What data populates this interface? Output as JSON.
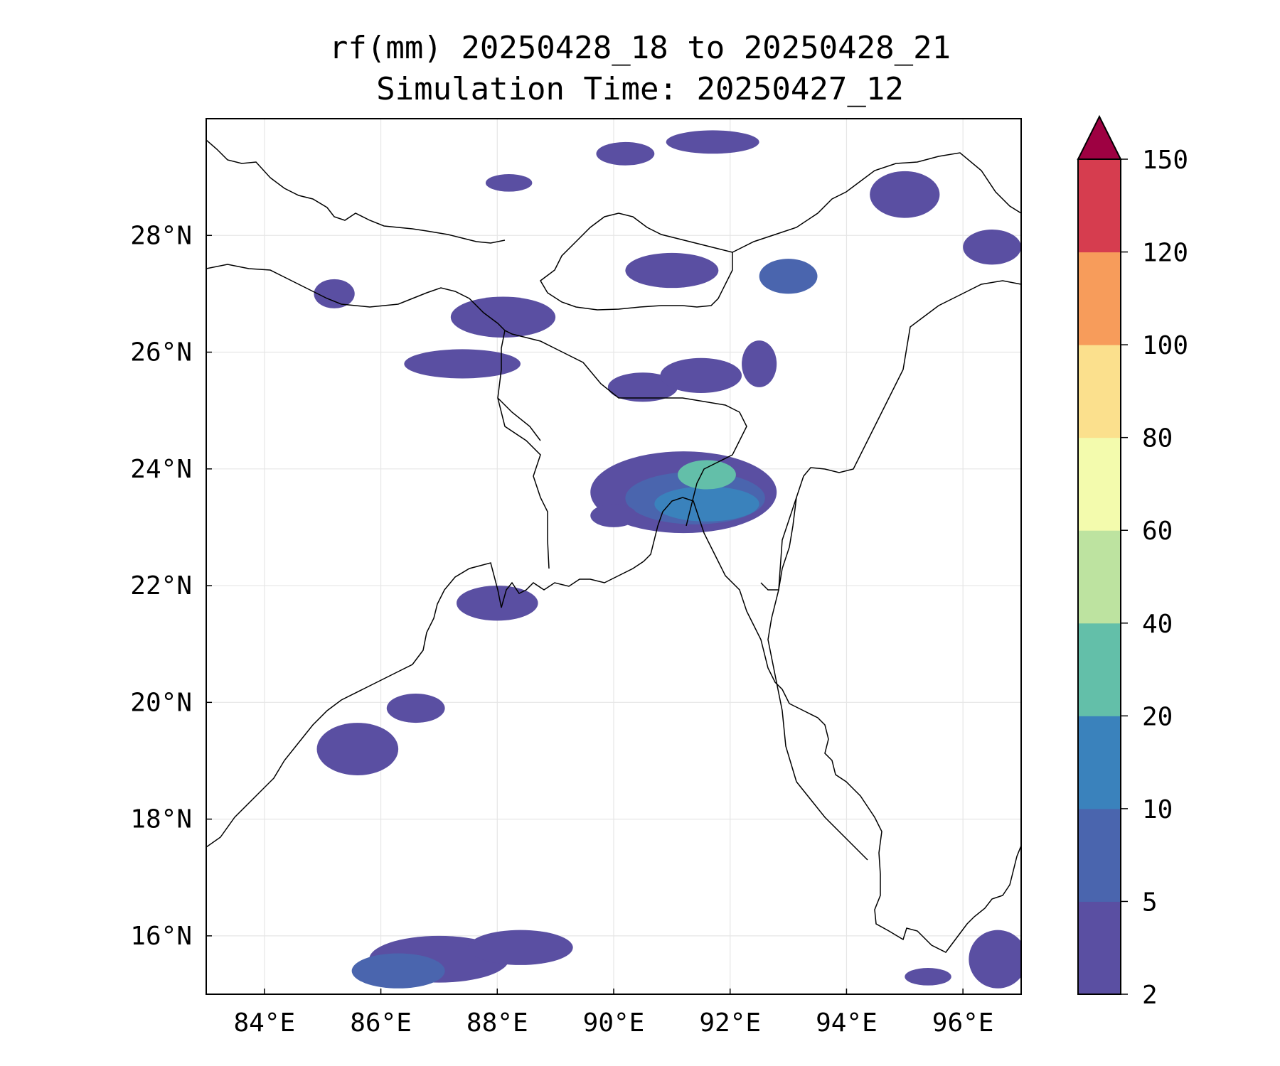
{
  "title": {
    "line1": "rf(mm) 20250428_18 to 20250428_21",
    "line2": "Simulation Time: 20250427_12"
  },
  "map": {
    "lon_range": [
      83.0,
      97.0
    ],
    "lat_range": [
      15.0,
      30.0
    ],
    "x_ticks": [
      {
        "value": 84,
        "label": "84°E"
      },
      {
        "value": 86,
        "label": "86°E"
      },
      {
        "value": 88,
        "label": "88°E"
      },
      {
        "value": 90,
        "label": "90°E"
      },
      {
        "value": 92,
        "label": "92°E"
      },
      {
        "value": 94,
        "label": "94°E"
      },
      {
        "value": 96,
        "label": "96°E"
      }
    ],
    "y_ticks": [
      {
        "value": 16,
        "label": "16°N"
      },
      {
        "value": 18,
        "label": "18°N"
      },
      {
        "value": 20,
        "label": "20°N"
      },
      {
        "value": 22,
        "label": "22°N"
      },
      {
        "value": 24,
        "label": "24°N"
      },
      {
        "value": 26,
        "label": "26°N"
      },
      {
        "value": 28,
        "label": "28°N"
      }
    ],
    "grid": true
  },
  "colorbar": {
    "levels": [
      {
        "label": "2",
        "color": "#5a4fa2"
      },
      {
        "label": "5",
        "color": "#4a65ae"
      },
      {
        "label": "10",
        "color": "#3a82bc"
      },
      {
        "label": "20",
        "color": "#63bfa9"
      },
      {
        "label": "40",
        "color": "#bde3a0"
      },
      {
        "label": "60",
        "color": "#f3fbad"
      },
      {
        "label": "80",
        "color": "#fbe08d"
      },
      {
        "label": "100",
        "color": "#f79c5b"
      },
      {
        "label": "120",
        "color": "#d63d4f"
      },
      {
        "label": "150",
        "color": "#9e0142"
      }
    ],
    "extend": "max"
  },
  "precip_areas": [
    {
      "lon": 91.2,
      "lat": 23.6,
      "rx": 1.6,
      "ry": 0.7,
      "level": 0
    },
    {
      "lon": 91.4,
      "lat": 23.5,
      "rx": 1.2,
      "ry": 0.45,
      "level": 1
    },
    {
      "lon": 91.6,
      "lat": 23.4,
      "rx": 0.9,
      "ry": 0.3,
      "level": 2
    },
    {
      "lon": 91.6,
      "lat": 23.9,
      "rx": 0.5,
      "ry": 0.25,
      "level": 3
    },
    {
      "lon": 87.4,
      "lat": 25.8,
      "rx": 1.0,
      "ry": 0.25,
      "level": 0
    },
    {
      "lon": 88.1,
      "lat": 26.6,
      "rx": 0.9,
      "ry": 0.35,
      "level": 0
    },
    {
      "lon": 90.5,
      "lat": 25.4,
      "rx": 0.6,
      "ry": 0.25,
      "level": 0
    },
    {
      "lon": 91.5,
      "lat": 25.6,
      "rx": 0.7,
      "ry": 0.3,
      "level": 0
    },
    {
      "lon": 93.0,
      "lat": 27.3,
      "rx": 0.5,
      "ry": 0.3,
      "level": 1
    },
    {
      "lon": 91.0,
      "lat": 27.4,
      "rx": 0.8,
      "ry": 0.3,
      "level": 0
    },
    {
      "lon": 85.2,
      "lat": 27.0,
      "rx": 0.35,
      "ry": 0.25,
      "level": 0
    },
    {
      "lon": 95.0,
      "lat": 28.7,
      "rx": 0.6,
      "ry": 0.4,
      "level": 0
    },
    {
      "lon": 91.7,
      "lat": 29.6,
      "rx": 0.8,
      "ry": 0.2,
      "level": 0
    },
    {
      "lon": 90.2,
      "lat": 29.4,
      "rx": 0.5,
      "ry": 0.2,
      "level": 0
    },
    {
      "lon": 88.2,
      "lat": 28.9,
      "rx": 0.4,
      "ry": 0.15,
      "level": 0
    },
    {
      "lon": 96.5,
      "lat": 27.8,
      "rx": 0.5,
      "ry": 0.3,
      "level": 0
    },
    {
      "lon": 88.0,
      "lat": 21.7,
      "rx": 0.7,
      "ry": 0.3,
      "level": 0
    },
    {
      "lon": 85.6,
      "lat": 19.2,
      "rx": 0.7,
      "ry": 0.45,
      "level": 0
    },
    {
      "lon": 86.6,
      "lat": 19.9,
      "rx": 0.5,
      "ry": 0.25,
      "level": 0
    },
    {
      "lon": 90.0,
      "lat": 23.2,
      "rx": 0.4,
      "ry": 0.2,
      "level": 0
    },
    {
      "lon": 92.5,
      "lat": 25.8,
      "rx": 0.3,
      "ry": 0.4,
      "level": 0
    },
    {
      "lon": 87.0,
      "lat": 15.6,
      "rx": 1.2,
      "ry": 0.4,
      "level": 0
    },
    {
      "lon": 86.3,
      "lat": 15.4,
      "rx": 0.8,
      "ry": 0.3,
      "level": 1
    },
    {
      "lon": 88.4,
      "lat": 15.8,
      "rx": 0.9,
      "ry": 0.3,
      "level": 0
    },
    {
      "lon": 96.6,
      "lat": 15.6,
      "rx": 0.5,
      "ry": 0.5,
      "level": 0
    },
    {
      "lon": 95.4,
      "lat": 15.3,
      "rx": 0.4,
      "ry": 0.15,
      "level": 0
    }
  ]
}
